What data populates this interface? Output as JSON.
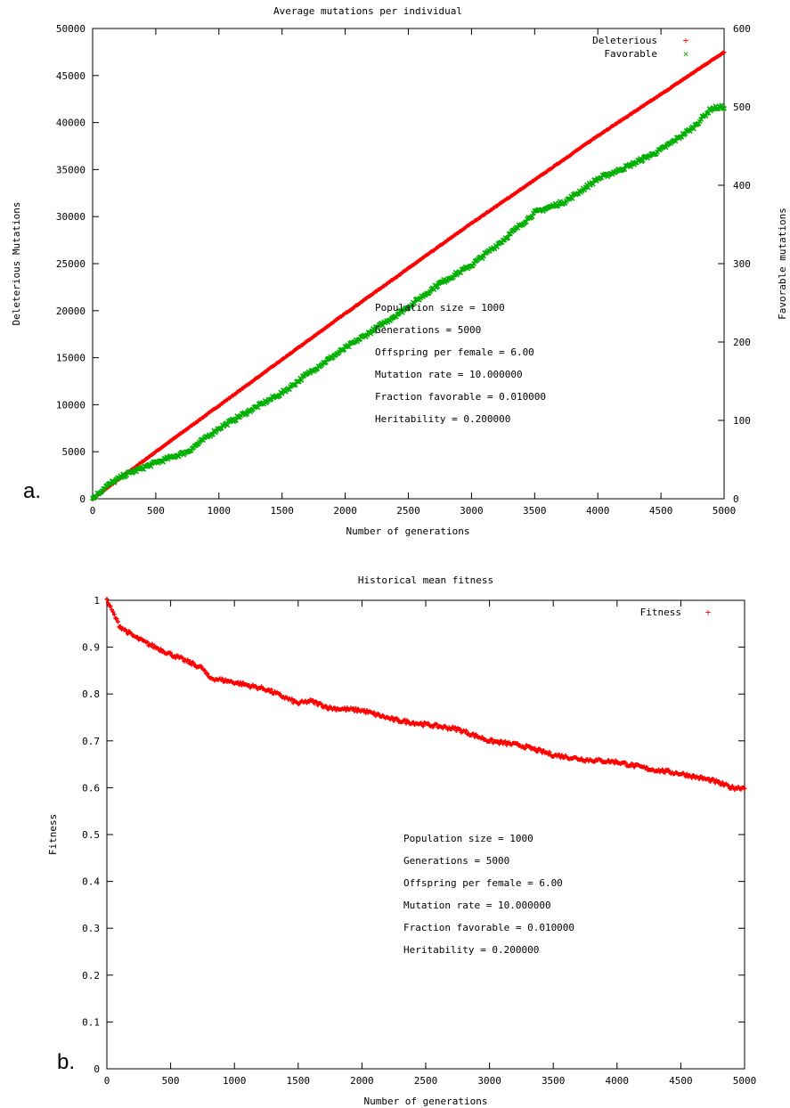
{
  "chart_data": [
    {
      "panel_label": "a.",
      "type": "scatter",
      "title": "Average mutations per individual",
      "xlabel": "Number of generations",
      "ylabel": "Deleterious Mutations",
      "y2label": "Favorable mutations",
      "xlim": [
        0,
        5000
      ],
      "ylim": [
        0,
        50000
      ],
      "y2lim": [
        0,
        600
      ],
      "x_ticks": [
        "0",
        "500",
        "1000",
        "1500",
        "2000",
        "2500",
        "3000",
        "3500",
        "4000",
        "4500",
        "5000"
      ],
      "y_ticks": [
        "0",
        "5000",
        "10000",
        "15000",
        "20000",
        "25000",
        "30000",
        "35000",
        "40000",
        "45000",
        "50000"
      ],
      "y2_ticks": [
        "0",
        "100",
        "200",
        "300",
        "400",
        "500",
        "600"
      ],
      "grid": false,
      "legend_position": "top-right",
      "series": [
        {
          "name": "Deleterious",
          "marker": "+",
          "color": "#ff0000",
          "axis": "left",
          "x": [
            0,
            250,
            500,
            1000,
            1500,
            2000,
            2500,
            3000,
            3500,
            4000,
            4500,
            5000
          ],
          "y": [
            0,
            2500,
            5000,
            9900,
            14800,
            19700,
            24500,
            29300,
            33900,
            38600,
            43000,
            47500
          ]
        },
        {
          "name": "Favorable",
          "marker": "x",
          "color": "#00b000",
          "axis": "right",
          "x": [
            0,
            100,
            250,
            500,
            750,
            900,
            1000,
            1250,
            1500,
            1750,
            2000,
            2250,
            2500,
            2750,
            3000,
            3250,
            3500,
            3750,
            4000,
            4250,
            4500,
            4750,
            4900,
            5000
          ],
          "y": [
            0,
            15,
            30,
            46,
            60,
            78,
            90,
            113,
            135,
            165,
            192,
            218,
            245,
            275,
            298,
            330,
            365,
            380,
            408,
            425,
            445,
            473,
            498,
            500
          ]
        }
      ],
      "annotations": [
        "Population size = 1000",
        "Generations = 5000",
        "Offspring per female = 6.00",
        "Mutation rate = 10.000000",
        "Fraction favorable = 0.010000",
        "Heritability = 0.200000"
      ]
    },
    {
      "panel_label": "b.",
      "type": "scatter",
      "title": "Historical mean fitness",
      "xlabel": "Number of generations",
      "ylabel": "Fitness",
      "xlim": [
        0,
        5000
      ],
      "ylim": [
        0,
        1
      ],
      "x_ticks": [
        "0",
        "500",
        "1000",
        "1500",
        "2000",
        "2500",
        "3000",
        "3500",
        "4000",
        "4500",
        "5000"
      ],
      "y_ticks": [
        "0",
        "0.1",
        "0.2",
        "0.3",
        "0.4",
        "0.5",
        "0.6",
        "0.7",
        "0.8",
        "0.9",
        "1"
      ],
      "grid": false,
      "legend_position": "top-right",
      "series": [
        {
          "name": "Fitness",
          "marker": "+",
          "color": "#ff0000",
          "x": [
            0,
            100,
            200,
            300,
            500,
            750,
            800,
            1000,
            1250,
            1500,
            1600,
            1750,
            2000,
            2250,
            2500,
            2750,
            3000,
            3250,
            3500,
            3750,
            4000,
            4250,
            4500,
            4750,
            4900,
            5000
          ],
          "y": [
            1.0,
            0.945,
            0.925,
            0.91,
            0.885,
            0.855,
            0.835,
            0.825,
            0.81,
            0.78,
            0.785,
            0.77,
            0.765,
            0.745,
            0.735,
            0.725,
            0.7,
            0.69,
            0.67,
            0.66,
            0.655,
            0.64,
            0.63,
            0.615,
            0.6,
            0.6
          ]
        }
      ],
      "annotations": [
        "Population size = 1000",
        "Generations = 5000",
        "Offspring per female = 6.00",
        "Mutation rate = 10.000000",
        "Fraction favorable = 0.010000",
        "Heritability = 0.200000"
      ]
    }
  ]
}
